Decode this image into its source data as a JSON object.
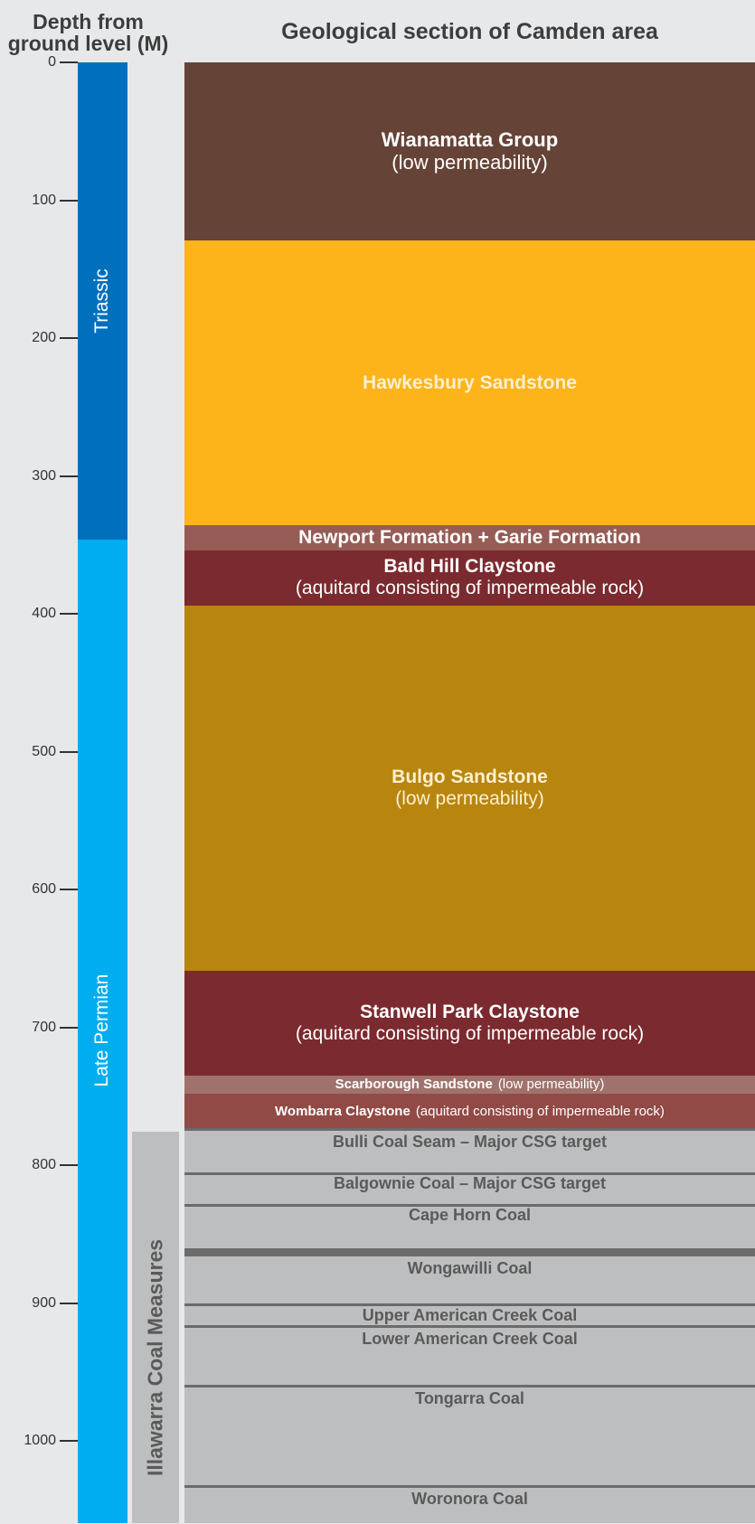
{
  "header": {
    "depth_title_line1": "Depth from",
    "depth_title_line2": "ground level (M)",
    "section_title": "Geological section of Camden area"
  },
  "depth_axis": {
    "min": 0,
    "max": 1060,
    "ticks": [
      0,
      100,
      200,
      300,
      400,
      500,
      600,
      700,
      800,
      900,
      1000
    ]
  },
  "periods": [
    {
      "name": "Triassic",
      "top": 0,
      "bottom": 346,
      "color": "#0070bd"
    },
    {
      "name": "Late Permian",
      "top": 346,
      "bottom": 1060,
      "color": "#00adef"
    }
  ],
  "measures": {
    "name": "Illawarra Coal Measures",
    "top": 776,
    "bottom": 1060,
    "color": "#bdbebf"
  },
  "layers": [
    {
      "name": "Wianamatta Group",
      "note": "(low permeability)",
      "top": 0,
      "bottom": 129,
      "color": "#664337",
      "text_color": "#ffffff",
      "layout": "stacked",
      "size": 22
    },
    {
      "name": "Hawkesbury Sandstone",
      "note": "",
      "top": 129,
      "bottom": 336,
      "color": "#fdb31a",
      "text_color": "#fdf0d0",
      "layout": "stacked",
      "size": 21
    },
    {
      "name": "Newport Formation + Garie Formation",
      "note": "",
      "top": 336,
      "bottom": 354,
      "color": "#975c55",
      "text_color": "#ffffff",
      "layout": "stacked",
      "size": 21
    },
    {
      "name": "Bald Hill Claystone",
      "note": "(aquitard consisting of impermeable rock)",
      "top": 354,
      "bottom": 394,
      "color": "#7b2a2f",
      "text_color": "#ffffff",
      "layout": "stacked",
      "size": 21
    },
    {
      "name": "Bulgo Sandstone",
      "note": "(low permeability)",
      "top": 394,
      "bottom": 659,
      "color": "#b8850e",
      "text_color": "#fdf0d0",
      "layout": "stacked",
      "size": 21
    },
    {
      "name": "Stanwell Park Claystone",
      "note": "(aquitard consisting of impermeable rock)",
      "top": 659,
      "bottom": 735,
      "color": "#7b2a2f",
      "text_color": "#ffffff",
      "layout": "stacked",
      "size": 21
    },
    {
      "name": "Scarborough Sandstone",
      "note": "(low permeability)",
      "top": 735,
      "bottom": 748,
      "color": "#a0726d",
      "text_color": "#ffffff",
      "layout": "inline",
      "size": 15
    },
    {
      "name": "Wombarra Claystone",
      "note": "(aquitard consisting of impermeable rock)",
      "top": 748,
      "bottom": 774,
      "color": "#914a45",
      "text_color": "#ffffff",
      "layout": "inline",
      "size": 15
    },
    {
      "name": "",
      "note": "",
      "top": 774,
      "bottom": 1060,
      "color": "#bdbebf",
      "text_color": "#5a5a5a",
      "layout": "stacked",
      "size": 15
    }
  ],
  "coal_seams": [
    {
      "name": "Bulli Coal Seam – Major CSG target",
      "line_depth": 774,
      "thickness": 1.5,
      "label_depth": 783
    },
    {
      "name": "Balgownie Coal – Major CSG target",
      "line_depth": 806,
      "thickness": 1.5,
      "label_depth": 813
    },
    {
      "name": "Cape Horn Coal",
      "line_depth": 829,
      "thickness": 1.5,
      "label_depth": 836
    },
    {
      "name": "Wongawilli Coal",
      "line_depth": 863,
      "thickness": 4.5,
      "label_depth": 875
    },
    {
      "name": "Upper American Creek Coal",
      "line_depth": 901,
      "thickness": 1.5,
      "label_depth": 909
    },
    {
      "name": "Lower American Creek Coal",
      "line_depth": 917,
      "thickness": 1.5,
      "label_depth": 926
    },
    {
      "name": "Tongarra Coal",
      "line_depth": 960,
      "thickness": 1.5,
      "label_depth": 969
    },
    {
      "name": "Woronora Coal",
      "line_depth": 1033,
      "thickness": 1.5,
      "label_depth": 1042
    }
  ]
}
